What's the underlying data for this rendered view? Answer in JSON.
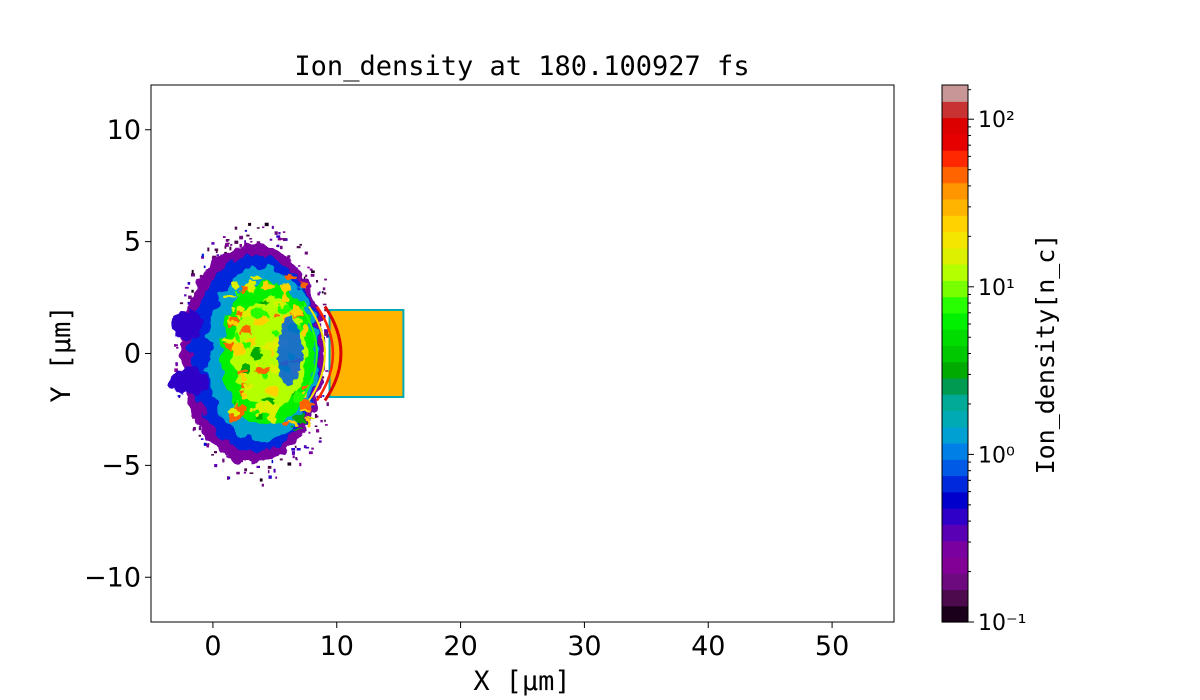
{
  "chart_data": {
    "type": "heatmap",
    "title": "Ion_density at 180.100927 fs",
    "xlabel": "X",
    "xlabel_unit": "[μm]",
    "ylabel": "Y",
    "ylabel_unit": "[μm]",
    "xlim": [
      -5,
      55
    ],
    "ylim": [
      -12,
      12
    ],
    "xticks": [
      0,
      10,
      20,
      30,
      40,
      50
    ],
    "yticks": [
      10,
      5,
      0,
      -5,
      -10
    ],
    "xtick_labels": [
      "0",
      "10",
      "20",
      "30",
      "40",
      "50"
    ],
    "ytick_labels": [
      "10",
      "5",
      "0",
      "−5",
      "−10"
    ],
    "grid": false,
    "colorbar": {
      "label": "Ion_density",
      "label_unit": "[n_c]",
      "scale": "log",
      "range": [
        0.1,
        160
      ],
      "tick_values": [
        0.1,
        1,
        10,
        100
      ],
      "tick_labels": [
        "10⁻¹",
        "10⁰",
        "10¹",
        "10²"
      ],
      "colors": [
        "#1a001a",
        "#4d0a4d",
        "#6e0a80",
        "#820096",
        "#7a00a0",
        "#5a00b4",
        "#2e00c8",
        "#0000cd",
        "#0028dc",
        "#005ae6",
        "#0080e6",
        "#00a0d2",
        "#00aab4",
        "#00aa96",
        "#009b50",
        "#00aa00",
        "#00c800",
        "#00dc00",
        "#00f000",
        "#28ff00",
        "#78ff00",
        "#b4ff00",
        "#dcf000",
        "#f5e600",
        "#ffd200",
        "#ffb400",
        "#ff9600",
        "#ff6400",
        "#ff2800",
        "#e60000",
        "#dc0000",
        "#c83232",
        "#c89696"
      ]
    },
    "features": {
      "target_slab": {
        "x": [
          9.5,
          15.3
        ],
        "y": [
          -1.9,
          1.9
        ],
        "value_nc": 30
      },
      "plasma_region": {
        "x": [
          -3.5,
          9.5
        ],
        "y": [
          -6,
          5
        ],
        "value_range_nc": [
          0.1,
          100
        ]
      },
      "shock_front_x": 10.5
    }
  }
}
